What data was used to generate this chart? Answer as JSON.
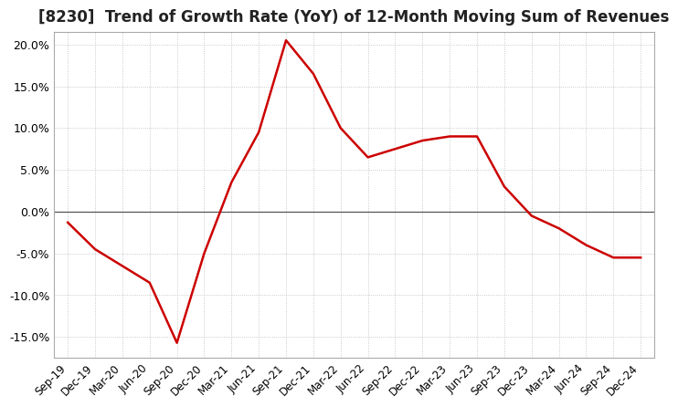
{
  "title": "[8230]  Trend of Growth Rate (YoY) of 12-Month Moving Sum of Revenues",
  "title_fontsize": 12,
  "line_color": "#cc0000",
  "background_color": "#ffffff",
  "plot_background_color": "#ffffff",
  "grid_color": "#bbbbbb",
  "ylim": [
    -0.175,
    0.215
  ],
  "yticks": [
    -0.15,
    -0.1,
    -0.05,
    0.0,
    0.05,
    0.1,
    0.15,
    0.2
  ],
  "x_labels": [
    "Sep-19",
    "Dec-19",
    "Mar-20",
    "Jun-20",
    "Sep-20",
    "Dec-20",
    "Mar-21",
    "Jun-21",
    "Sep-21",
    "Dec-21",
    "Mar-22",
    "Jun-22",
    "Sep-22",
    "Dec-22",
    "Mar-23",
    "Jun-23",
    "Sep-23",
    "Dec-23",
    "Mar-24",
    "Jun-24",
    "Sep-24",
    "Dec-24"
  ],
  "values": [
    -0.013,
    -0.045,
    -0.065,
    -0.085,
    -0.157,
    -0.05,
    0.035,
    0.095,
    0.205,
    0.165,
    0.1,
    0.065,
    0.075,
    0.085,
    0.09,
    0.09,
    0.03,
    -0.005,
    -0.02,
    -0.04,
    -0.055,
    -0.055
  ]
}
